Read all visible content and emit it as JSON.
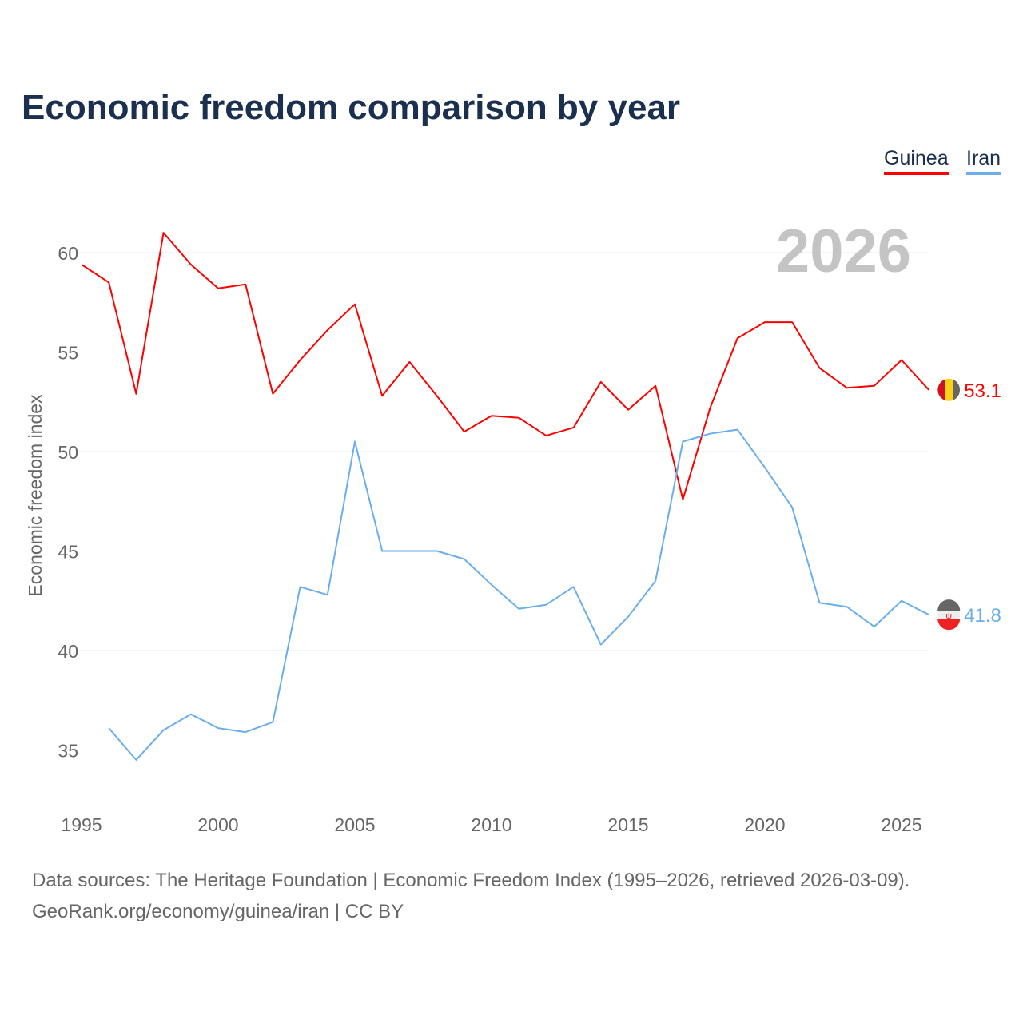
{
  "title": "Economic freedom comparison by year",
  "legend": [
    {
      "name": "Guinea",
      "color": "#ff0000"
    },
    {
      "name": "Iran",
      "color": "#6aaeea"
    }
  ],
  "year_watermark": "2026",
  "source_line1": "Data sources: The Heritage Foundation | Economic Freedom Index (1995–2026, retrieved 2026-03-09).",
  "source_line2": "GeoRank.org/economy/guinea/iran | CC BY",
  "chart_data": {
    "type": "line",
    "title": "Economic freedom comparison by year",
    "xlabel": "",
    "ylabel": "Economic freedom index",
    "xlim": [
      1995,
      2026
    ],
    "ylim": [
      32.7,
      63.5
    ],
    "xticks": [
      1995,
      2000,
      2005,
      2010,
      2015,
      2020,
      2025
    ],
    "yticks": [
      35,
      40,
      45,
      50,
      55,
      60
    ],
    "grid": true,
    "legend_position": "top-right",
    "series": [
      {
        "name": "Guinea",
        "color": "#ff0000",
        "end_label": "53.1",
        "x": [
          1995,
          1996,
          1997,
          1998,
          1999,
          2000,
          2001,
          2002,
          2003,
          2004,
          2005,
          2006,
          2007,
          2008,
          2009,
          2010,
          2011,
          2012,
          2013,
          2014,
          2015,
          2016,
          2017,
          2018,
          2019,
          2020,
          2021,
          2022,
          2023,
          2024,
          2025,
          2026
        ],
        "y": [
          59.4,
          58.5,
          52.9,
          61.0,
          59.4,
          58.2,
          58.4,
          52.9,
          54.6,
          56.1,
          57.4,
          52.8,
          54.5,
          52.8,
          51.0,
          51.8,
          51.7,
          50.8,
          51.2,
          53.5,
          52.1,
          53.3,
          47.6,
          52.2,
          55.7,
          56.5,
          56.5,
          54.2,
          53.2,
          53.3,
          54.6,
          53.1
        ]
      },
      {
        "name": "Iran",
        "color": "#6aaeea",
        "end_label": "41.8",
        "x": [
          1996,
          1997,
          1998,
          1999,
          2000,
          2001,
          2002,
          2003,
          2004,
          2005,
          2006,
          2007,
          2008,
          2009,
          2010,
          2011,
          2012,
          2013,
          2014,
          2015,
          2016,
          2017,
          2018,
          2019,
          2020,
          2021,
          2022,
          2023,
          2024,
          2025,
          2026
        ],
        "y": [
          36.1,
          34.5,
          36.0,
          36.8,
          36.1,
          35.9,
          36.4,
          43.2,
          42.8,
          50.5,
          45.0,
          45.0,
          45.0,
          44.6,
          43.3,
          42.1,
          42.3,
          43.2,
          40.3,
          41.7,
          43.5,
          50.5,
          50.9,
          51.1,
          49.2,
          47.2,
          42.4,
          42.2,
          41.2,
          42.5,
          41.8
        ]
      }
    ]
  }
}
